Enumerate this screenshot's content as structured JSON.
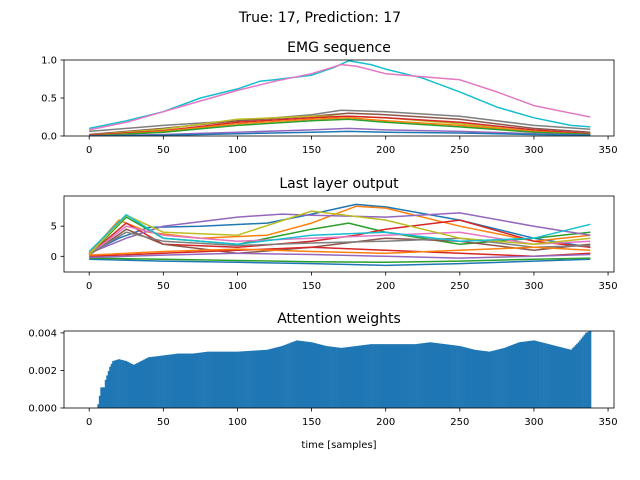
{
  "suptitle": "True: 17, Prediction: 17",
  "chart_data": [
    {
      "type": "line",
      "title": "EMG sequence",
      "xlabel": "",
      "ylabel": "",
      "xlim": [
        -17,
        354
      ],
      "ylim": [
        0,
        1.0
      ],
      "xticks": [
        0,
        50,
        100,
        150,
        200,
        250,
        300,
        350
      ],
      "yticks": [
        0.0,
        0.5,
        1.0
      ],
      "ytick_labels": [
        "0.0",
        "0.5",
        "1.0"
      ],
      "grid": false,
      "series": [
        {
          "color": "#17becf",
          "x": [
            0,
            25,
            50,
            75,
            100,
            115,
            125,
            150,
            165,
            175,
            190,
            200,
            225,
            250,
            275,
            300,
            325,
            338
          ],
          "y": [
            0.1,
            0.2,
            0.32,
            0.5,
            0.62,
            0.72,
            0.74,
            0.8,
            0.9,
            0.99,
            0.94,
            0.88,
            0.76,
            0.58,
            0.38,
            0.24,
            0.14,
            0.12
          ]
        },
        {
          "color": "#e377c2",
          "x": [
            0,
            25,
            50,
            75,
            100,
            125,
            150,
            170,
            180,
            200,
            225,
            250,
            275,
            300,
            325,
            338
          ],
          "y": [
            0.08,
            0.18,
            0.32,
            0.46,
            0.6,
            0.72,
            0.82,
            0.94,
            0.92,
            0.82,
            0.78,
            0.74,
            0.58,
            0.4,
            0.3,
            0.25
          ]
        },
        {
          "color": "#7f7f7f",
          "x": [
            0,
            50,
            100,
            150,
            170,
            200,
            250,
            300,
            338
          ],
          "y": [
            0.06,
            0.14,
            0.2,
            0.28,
            0.34,
            0.32,
            0.26,
            0.14,
            0.09
          ]
        },
        {
          "color": "#8c564b",
          "x": [
            0,
            50,
            100,
            150,
            175,
            200,
            250,
            300,
            338
          ],
          "y": [
            0.02,
            0.1,
            0.2,
            0.26,
            0.3,
            0.28,
            0.22,
            0.1,
            0.05
          ]
        },
        {
          "color": "#bcbd22",
          "x": [
            0,
            50,
            100,
            150,
            175,
            200,
            250,
            300,
            338
          ],
          "y": [
            0.01,
            0.09,
            0.22,
            0.26,
            0.26,
            0.24,
            0.16,
            0.06,
            0.03
          ]
        },
        {
          "color": "#d62728",
          "x": [
            0,
            50,
            100,
            150,
            175,
            200,
            250,
            300,
            338
          ],
          "y": [
            0.01,
            0.07,
            0.18,
            0.24,
            0.26,
            0.24,
            0.18,
            0.08,
            0.03
          ]
        },
        {
          "color": "#ff7f0e",
          "x": [
            0,
            50,
            100,
            150,
            175,
            200,
            250,
            300,
            338
          ],
          "y": [
            0.0,
            0.06,
            0.16,
            0.22,
            0.24,
            0.2,
            0.14,
            0.06,
            0.02
          ]
        },
        {
          "color": "#2ca02c",
          "x": [
            0,
            50,
            100,
            150,
            175,
            200,
            250,
            300,
            338
          ],
          "y": [
            0.0,
            0.05,
            0.14,
            0.2,
            0.22,
            0.18,
            0.12,
            0.05,
            0.02
          ]
        },
        {
          "color": "#9467bd",
          "x": [
            0,
            50,
            100,
            150,
            175,
            200,
            250,
            300,
            338
          ],
          "y": [
            0.0,
            0.02,
            0.05,
            0.08,
            0.1,
            0.08,
            0.06,
            0.03,
            0.01
          ]
        },
        {
          "color": "#1f77b4",
          "x": [
            0,
            50,
            100,
            150,
            175,
            200,
            250,
            300,
            338
          ],
          "y": [
            0.0,
            0.01,
            0.03,
            0.05,
            0.06,
            0.05,
            0.04,
            0.02,
            0.01
          ]
        }
      ]
    },
    {
      "type": "line",
      "title": "Last layer output",
      "xlabel": "",
      "ylabel": "",
      "xlim": [
        -17,
        354
      ],
      "ylim": [
        -2.6,
        10.0
      ],
      "xticks": [
        0,
        50,
        100,
        150,
        200,
        250,
        300,
        350
      ],
      "yticks": [
        0,
        5
      ],
      "ytick_labels": [
        "0",
        "5"
      ],
      "grid": false,
      "series": [
        {
          "color": "#1f77b4",
          "x": [
            0,
            20,
            40,
            75,
            120,
            150,
            180,
            200,
            250,
            300,
            338
          ],
          "y": [
            0.5,
            3.0,
            4.8,
            5.0,
            5.5,
            7.0,
            8.6,
            8.2,
            6.0,
            3.0,
            1.5
          ]
        },
        {
          "color": "#ff7f0e",
          "x": [
            0,
            20,
            40,
            75,
            120,
            150,
            180,
            200,
            250,
            300,
            338
          ],
          "y": [
            0.5,
            6.0,
            4.0,
            3.0,
            3.5,
            5.5,
            8.3,
            8.0,
            5.0,
            2.5,
            3.5
          ]
        },
        {
          "color": "#2ca02c",
          "x": [
            0,
            25,
            50,
            100,
            150,
            175,
            200,
            250,
            300,
            338
          ],
          "y": [
            0.2,
            6.5,
            3.0,
            2.0,
            4.5,
            5.5,
            4.0,
            2.0,
            3.0,
            4.0
          ]
        },
        {
          "color": "#d62728",
          "x": [
            0,
            25,
            50,
            100,
            150,
            180,
            200,
            250,
            300,
            338
          ],
          "y": [
            0.3,
            5.5,
            2.0,
            1.5,
            2.5,
            3.5,
            4.5,
            6.0,
            2.5,
            1.5
          ]
        },
        {
          "color": "#9467bd",
          "x": [
            0,
            25,
            50,
            100,
            130,
            150,
            200,
            250,
            300,
            338
          ],
          "y": [
            0.5,
            3.0,
            5.0,
            6.5,
            7.0,
            6.8,
            6.5,
            7.2,
            5.0,
            3.5
          ]
        },
        {
          "color": "#8c564b",
          "x": [
            0,
            25,
            50,
            100,
            150,
            200,
            250,
            300,
            338
          ],
          "y": [
            0.2,
            4.5,
            2.0,
            0.5,
            1.5,
            3.0,
            2.5,
            1.0,
            2.0
          ]
        },
        {
          "color": "#e377c2",
          "x": [
            0,
            25,
            50,
            100,
            150,
            200,
            250,
            300,
            338
          ],
          "y": [
            0.3,
            5.0,
            3.5,
            2.5,
            3.0,
            3.5,
            4.0,
            2.0,
            2.5
          ]
        },
        {
          "color": "#7f7f7f",
          "x": [
            0,
            25,
            50,
            100,
            150,
            200,
            250,
            300,
            338
          ],
          "y": [
            0.4,
            4.0,
            2.5,
            1.8,
            2.2,
            2.5,
            3.0,
            1.5,
            1.8
          ]
        },
        {
          "color": "#bcbd22",
          "x": [
            0,
            25,
            50,
            100,
            150,
            200,
            250,
            300,
            338
          ],
          "y": [
            0.3,
            6.8,
            4.0,
            3.5,
            7.5,
            6.0,
            3.0,
            2.0,
            3.0
          ]
        },
        {
          "color": "#17becf",
          "x": [
            0,
            25,
            50,
            100,
            150,
            200,
            250,
            300,
            338
          ],
          "y": [
            0.8,
            6.9,
            3.0,
            2.0,
            3.5,
            4.0,
            2.5,
            3.0,
            5.3
          ]
        },
        {
          "color": "#1f77b4",
          "x": [
            0,
            50,
            100,
            150,
            200,
            250,
            300,
            338
          ],
          "y": [
            -0.5,
            -0.8,
            -1.0,
            -1.2,
            -1.5,
            -1.2,
            -0.8,
            -0.5
          ]
        },
        {
          "color": "#2ca02c",
          "x": [
            0,
            50,
            100,
            150,
            200,
            250,
            300,
            338
          ],
          "y": [
            -0.3,
            -0.5,
            -0.7,
            -0.9,
            -1.0,
            -0.8,
            -0.5,
            -0.3
          ]
        },
        {
          "color": "#d62728",
          "x": [
            0,
            50,
            100,
            150,
            200,
            250,
            300,
            338
          ],
          "y": [
            0.0,
            0.5,
            1.0,
            1.5,
            1.0,
            0.5,
            0.0,
            0.5
          ]
        },
        {
          "color": "#ff7f0e",
          "x": [
            0,
            50,
            100,
            150,
            200,
            250,
            300,
            338
          ],
          "y": [
            0.2,
            0.8,
            1.2,
            0.8,
            0.5,
            1.0,
            1.5,
            1.0
          ]
        },
        {
          "color": "#9467bd",
          "x": [
            0,
            50,
            100,
            150,
            200,
            250,
            300,
            338
          ],
          "y": [
            -0.2,
            0.2,
            0.5,
            0.3,
            0.0,
            -0.3,
            0.0,
            0.3
          ]
        }
      ]
    },
    {
      "type": "bar",
      "title": "Attention weights",
      "xlabel": "time [samples]",
      "ylabel": "",
      "xlim": [
        -17,
        354
      ],
      "ylim": [
        0,
        0.0041
      ],
      "xticks": [
        0,
        50,
        100,
        150,
        200,
        250,
        300,
        350
      ],
      "yticks": [
        0.0,
        0.002,
        0.004
      ],
      "ytick_labels": [
        "0.000",
        "0.002",
        "0.004"
      ],
      "grid": false,
      "bar_color": "#1f77b4",
      "x_start": 0,
      "x_end": 338,
      "envelope": [
        [
          0,
          0
        ],
        [
          5,
          0
        ],
        [
          6,
          0.0002
        ],
        [
          8,
          0.0011
        ],
        [
          10,
          0.0011
        ],
        [
          11,
          0.0015
        ],
        [
          14,
          0.0022
        ],
        [
          16,
          0.0025
        ],
        [
          20,
          0.0026
        ],
        [
          25,
          0.0025
        ],
        [
          30,
          0.0023
        ],
        [
          40,
          0.0027
        ],
        [
          50,
          0.0028
        ],
        [
          60,
          0.0029
        ],
        [
          70,
          0.0029
        ],
        [
          80,
          0.003
        ],
        [
          100,
          0.003
        ],
        [
          120,
          0.0031
        ],
        [
          130,
          0.0033
        ],
        [
          140,
          0.0036
        ],
        [
          150,
          0.0035
        ],
        [
          160,
          0.0033
        ],
        [
          170,
          0.0032
        ],
        [
          180,
          0.0033
        ],
        [
          190,
          0.0034
        ],
        [
          200,
          0.0034
        ],
        [
          210,
          0.0034
        ],
        [
          220,
          0.0034
        ],
        [
          230,
          0.0035
        ],
        [
          240,
          0.0034
        ],
        [
          250,
          0.0033
        ],
        [
          260,
          0.0031
        ],
        [
          270,
          0.003
        ],
        [
          280,
          0.0032
        ],
        [
          290,
          0.0035
        ],
        [
          300,
          0.0036
        ],
        [
          310,
          0.0034
        ],
        [
          320,
          0.0032
        ],
        [
          325,
          0.0031
        ],
        [
          330,
          0.0035
        ],
        [
          335,
          0.004
        ],
        [
          338,
          0.0041
        ]
      ]
    }
  ]
}
